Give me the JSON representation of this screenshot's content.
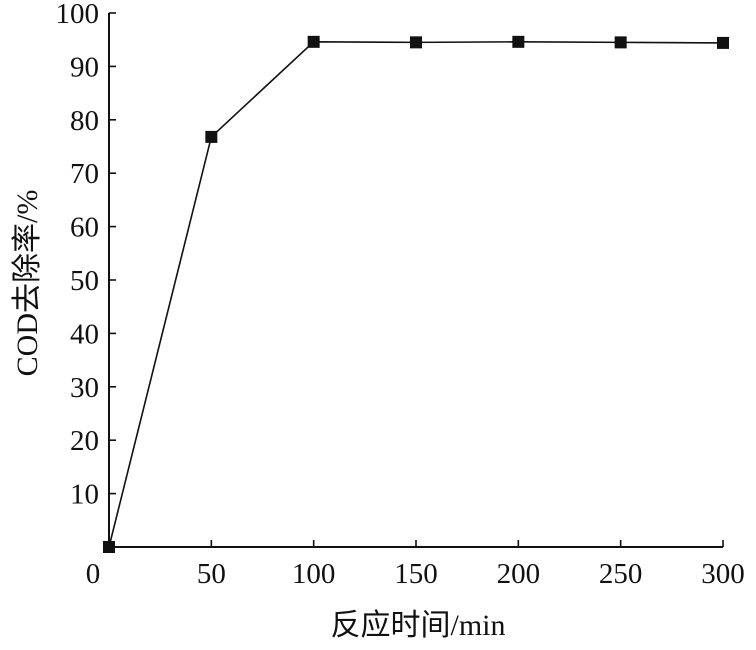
{
  "chart_data": {
    "type": "line",
    "title": "",
    "xlabel": "反应时间/min",
    "ylabel": "COD去除率/%",
    "x_ticks": [
      0,
      50,
      100,
      150,
      200,
      250,
      300
    ],
    "y_ticks": [
      10,
      20,
      30,
      40,
      50,
      60,
      70,
      80,
      90,
      100
    ],
    "xlim": [
      0,
      300
    ],
    "ylim": [
      0,
      100
    ],
    "grid": false,
    "legend": "none",
    "series": [
      {
        "marker": "square",
        "color": "#111111",
        "x": [
          0,
          50,
          100,
          150,
          200,
          250,
          300
        ],
        "y": [
          0,
          76.8,
          94.6,
          94.5,
          94.6,
          94.5,
          94.4
        ]
      }
    ]
  }
}
